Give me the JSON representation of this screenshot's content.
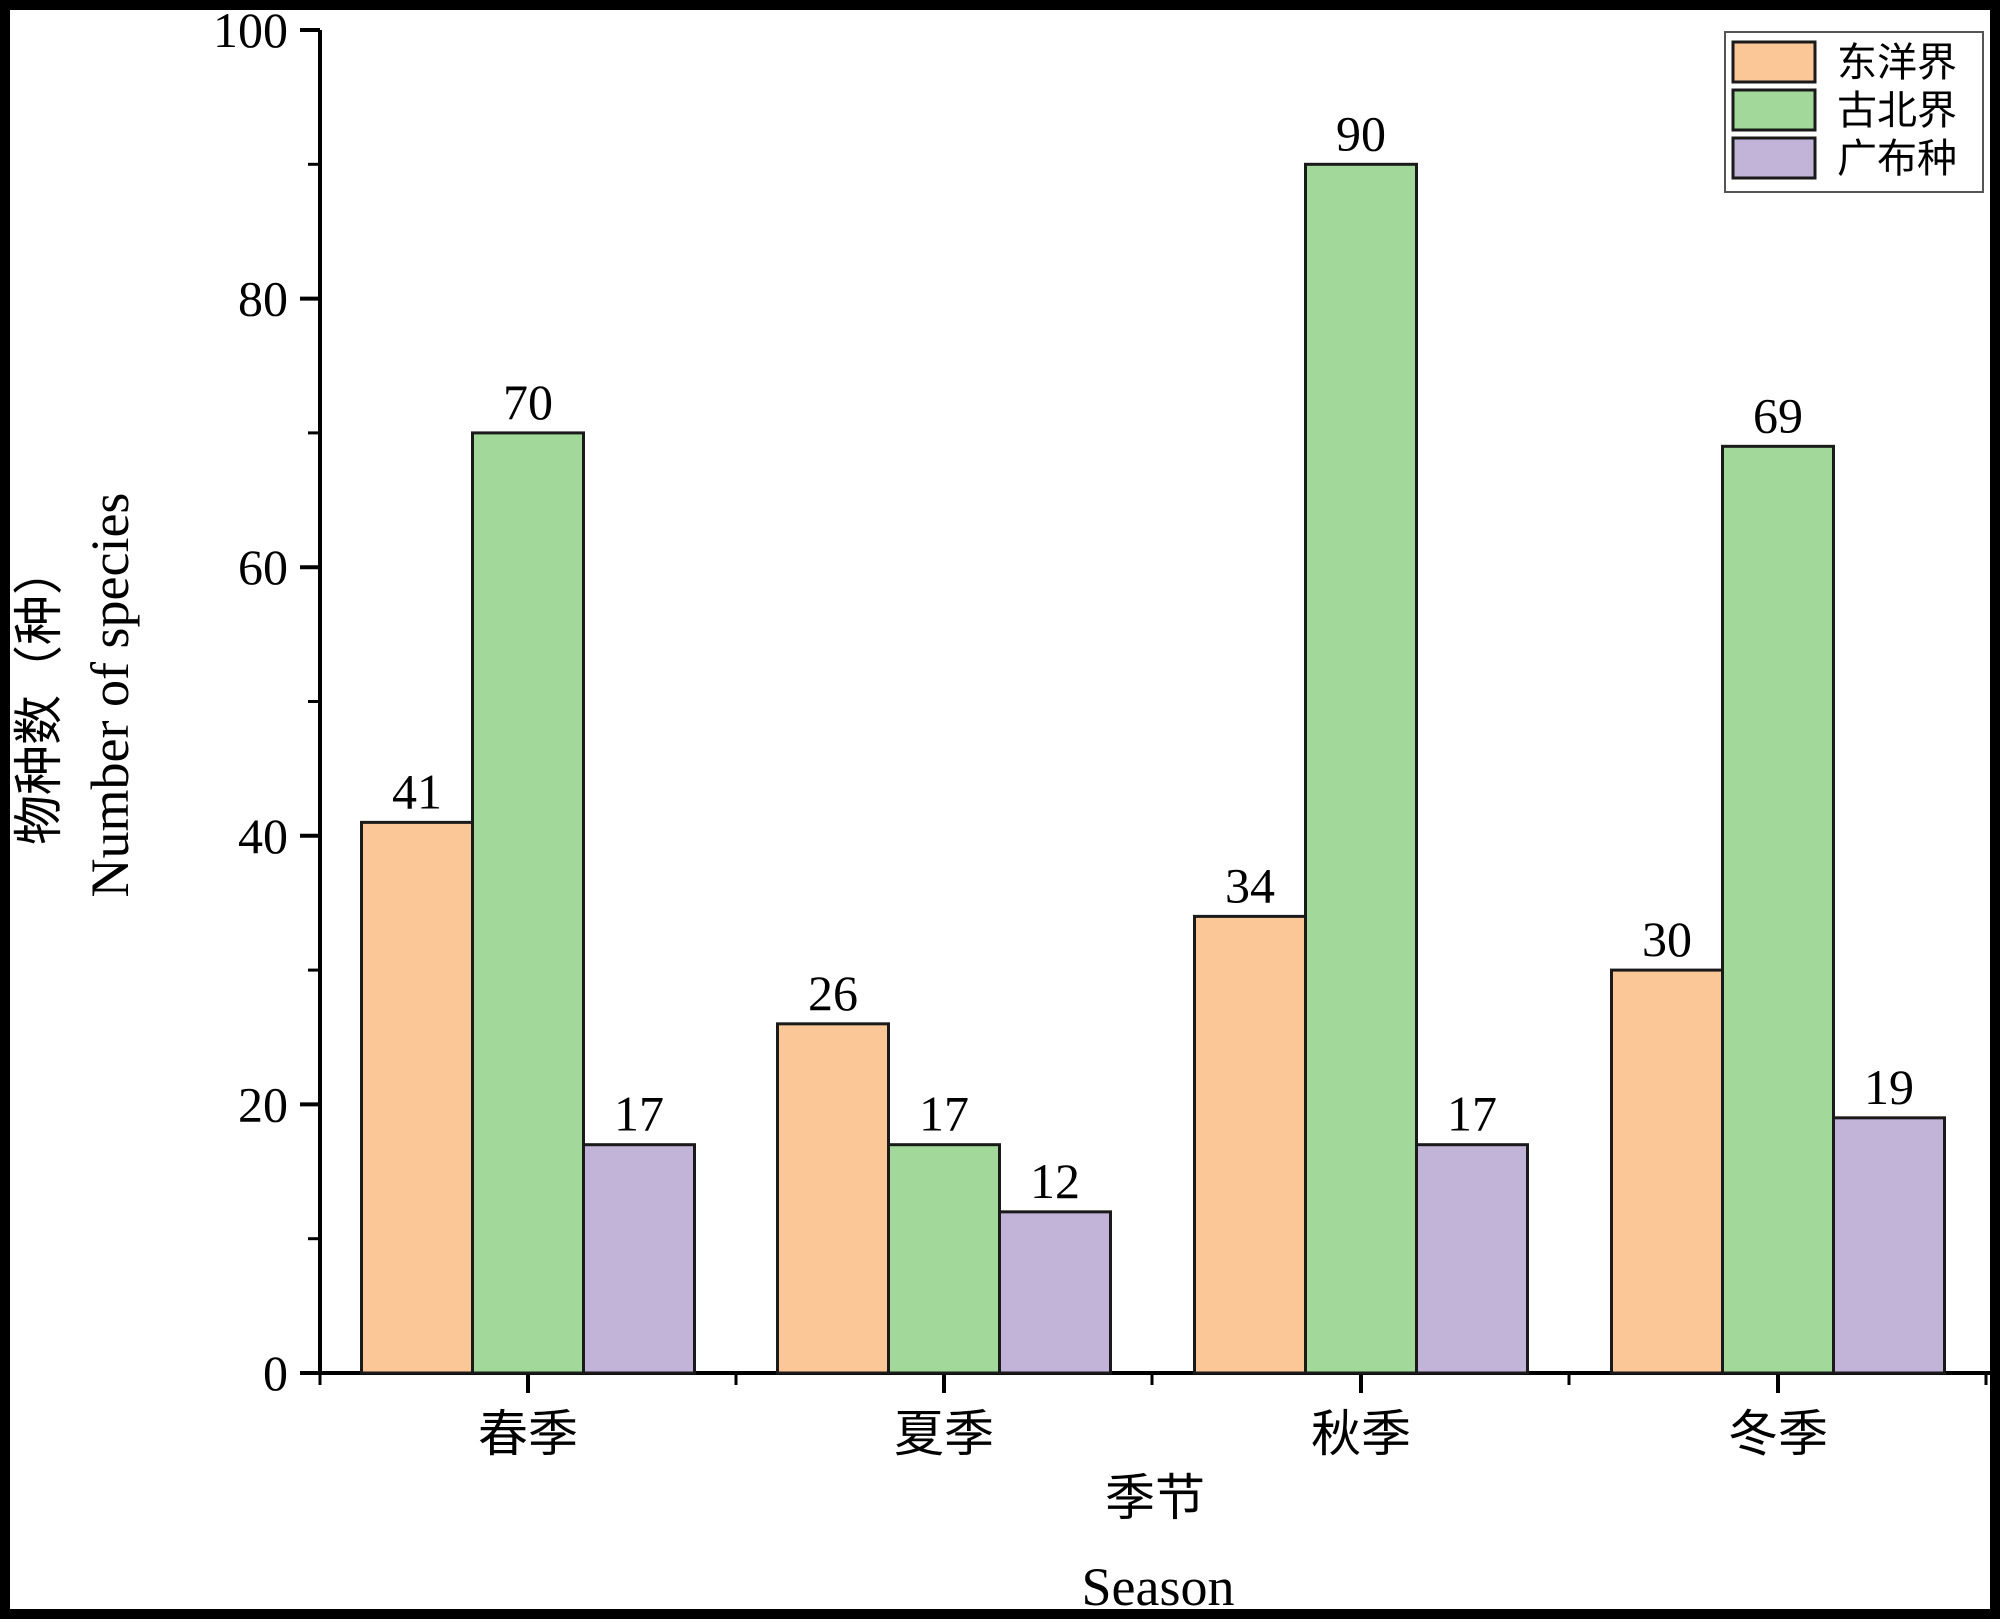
{
  "chart_data": {
    "type": "bar",
    "categories": [
      "春季",
      "夏季",
      "秋季",
      "冬季"
    ],
    "series": [
      {
        "name": "东洋界",
        "color": "#fbc796",
        "values": [
          41,
          26,
          34,
          30
        ]
      },
      {
        "name": "古北界",
        "color": "#a2d99b",
        "values": [
          70,
          17,
          90,
          69
        ]
      },
      {
        "name": "广布种",
        "color": "#c2b3d8",
        "values": [
          17,
          12,
          17,
          19
        ]
      }
    ],
    "ylim": [
      0,
      100
    ],
    "yticks": [
      0,
      20,
      40,
      60,
      80,
      100
    ],
    "ylabel_cn": "物种数（种）",
    "ylabel_en": "Number of species",
    "xlabel_cn": "季节",
    "xlabel_en": "Season",
    "legend_position": "top-right",
    "grid": false,
    "data_labels": true
  }
}
